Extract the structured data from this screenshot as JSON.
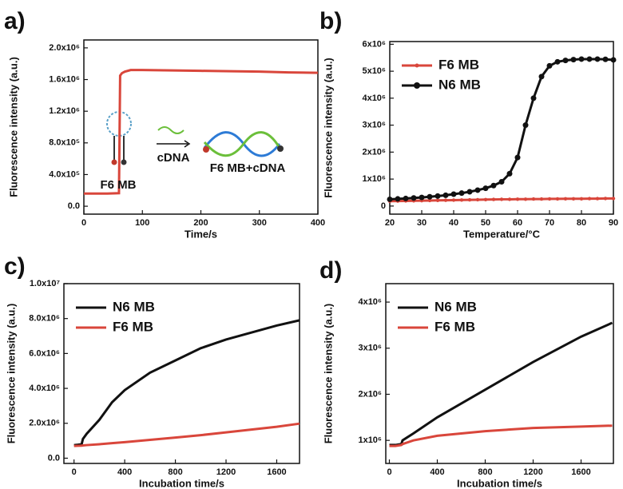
{
  "chart_data": [
    {
      "type": "line",
      "label": "a)",
      "xlabel": "Time/s",
      "ylabel": "Fluorescence intensity (a.u.)",
      "x": [
        0,
        20,
        40,
        60,
        62,
        65,
        70,
        80,
        100,
        150,
        200,
        250,
        300,
        350,
        400
      ],
      "series": [
        {
          "color": "#d9463b",
          "values": [
            160000,
            160000,
            160000,
            165000,
            1650000,
            1680000,
            1700000,
            1720000,
            1720000,
            1715000,
            1710000,
            1705000,
            1700000,
            1690000,
            1685000
          ]
        }
      ],
      "xlim": [
        0,
        400
      ],
      "xticks": [
        0,
        100,
        200,
        300,
        400
      ],
      "ylim": [
        -100000,
        2100000
      ],
      "yticks": [
        {
          "value": 0,
          "label": "0.0"
        },
        {
          "value": 400000,
          "label": "4.0x10⁵"
        },
        {
          "value": 800000,
          "label": "8.0x10⁵"
        },
        {
          "value": 1200000,
          "label": "1.2x10⁶"
        },
        {
          "value": 1600000,
          "label": "1.6x10⁶"
        },
        {
          "value": 2000000,
          "label": "2.0x10⁶"
        }
      ],
      "annotations": [
        "F6 MB",
        "cDNA",
        "F6 MB+cDNA"
      ]
    },
    {
      "type": "line",
      "label": "b)",
      "xlabel": "Temperature/°C",
      "ylabel": "Fluorescence intensity (a.u.)",
      "legend": "upper left",
      "markers": true,
      "x": [
        20,
        22.5,
        25,
        27.5,
        30,
        32.5,
        35,
        37.5,
        40,
        42.5,
        45,
        47.5,
        50,
        52.5,
        55,
        57.5,
        60,
        62.5,
        65,
        67.5,
        70,
        72.5,
        75,
        77.5,
        80,
        82.5,
        85,
        87.5,
        90
      ],
      "series": [
        {
          "name": "F6 MB",
          "color": "#d9463b",
          "values": [
            180000,
            185000,
            190000,
            195000,
            200000,
            205000,
            210000,
            215000,
            220000,
            225000,
            230000,
            235000,
            240000,
            245000,
            250000,
            250000,
            255000,
            255000,
            260000,
            260000,
            265000,
            265000,
            270000,
            270000,
            270000,
            275000,
            275000,
            280000,
            280000
          ]
        },
        {
          "name": "N6 MB",
          "color": "#111111",
          "values": [
            250000,
            265000,
            280000,
            300000,
            320000,
            345000,
            370000,
            400000,
            440000,
            480000,
            530000,
            590000,
            660000,
            760000,
            900000,
            1200000,
            1800000,
            3000000,
            4000000,
            4800000,
            5200000,
            5350000,
            5400000,
            5430000,
            5450000,
            5450000,
            5450000,
            5440000,
            5420000
          ]
        }
      ],
      "xlim": [
        20,
        90
      ],
      "xticks": [
        20,
        30,
        40,
        50,
        60,
        70,
        80,
        90
      ],
      "ylim": [
        -300000,
        6100000
      ],
      "yticks": [
        0,
        {
          "value": 1000000,
          "label": "1x10⁶"
        },
        {
          "value": 2000000,
          "label": "2x10⁶"
        },
        {
          "value": 3000000,
          "label": "3x10⁶"
        },
        {
          "value": 4000000,
          "label": "4x10⁶"
        },
        {
          "value": 5000000,
          "label": "5x10⁶"
        },
        {
          "value": 6000000,
          "label": "6x10⁶"
        }
      ]
    },
    {
      "type": "line",
      "label": "c)",
      "xlabel": "Incubation time/s",
      "ylabel": "Fluorescence intensity (a.u.)",
      "legend": "upper left",
      "x": [
        0,
        30,
        60,
        70,
        100,
        200,
        300,
        400,
        600,
        800,
        1000,
        1200,
        1400,
        1600,
        1780
      ],
      "series": [
        {
          "name": "N6 MB",
          "color": "#111111",
          "values": [
            750000,
            770000,
            800000,
            1100000,
            1400000,
            2200000,
            3200000,
            3900000,
            4900000,
            5600000,
            6300000,
            6800000,
            7200000,
            7600000,
            7900000
          ]
        },
        {
          "name": "F6 MB",
          "color": "#d9463b",
          "values": [
            700000,
            710000,
            720000,
            730000,
            750000,
            800000,
            860000,
            920000,
            1050000,
            1180000,
            1320000,
            1480000,
            1640000,
            1800000,
            1980000
          ]
        }
      ],
      "xlim": [
        -80,
        1780
      ],
      "xticks": [
        0,
        400,
        800,
        1200,
        1600
      ],
      "ylim": [
        -300000,
        10000000
      ],
      "yticks": [
        {
          "value": 0,
          "label": "0.0"
        },
        {
          "value": 2000000,
          "label": "2.0x10⁶"
        },
        {
          "value": 4000000,
          "label": "4.0x10⁶"
        },
        {
          "value": 6000000,
          "label": "6.0x10⁶"
        },
        {
          "value": 8000000,
          "label": "8.0x10⁶"
        },
        {
          "value": 10000000,
          "label": "1.0x10⁷"
        }
      ]
    },
    {
      "type": "line",
      "label": "d)",
      "xlabel": "Incubation time/s",
      "ylabel": "Fluorescence intensity (a.u.)",
      "legend": "upper left",
      "x": [
        0,
        50,
        100,
        110,
        200,
        400,
        800,
        1200,
        1600,
        1860
      ],
      "series": [
        {
          "name": "N6 MB",
          "color": "#111111",
          "values": [
            900000,
            900000,
            920000,
            1000000,
            1150000,
            1500000,
            2100000,
            2700000,
            3250000,
            3550000
          ]
        },
        {
          "name": "F6 MB",
          "color": "#d9463b",
          "values": [
            880000,
            880000,
            900000,
            920000,
            1000000,
            1100000,
            1200000,
            1270000,
            1300000,
            1320000
          ]
        }
      ],
      "xlim": [
        -30,
        1870
      ],
      "xticks": [
        0,
        400,
        800,
        1200,
        1600
      ],
      "ylim": [
        500000,
        4400000
      ],
      "yticks": [
        {
          "value": 1000000,
          "label": "1x10⁶"
        },
        {
          "value": 2000000,
          "label": "2x10⁶"
        },
        {
          "value": 3000000,
          "label": "3x10⁶"
        },
        {
          "value": 4000000,
          "label": "4x10⁶"
        }
      ]
    }
  ]
}
